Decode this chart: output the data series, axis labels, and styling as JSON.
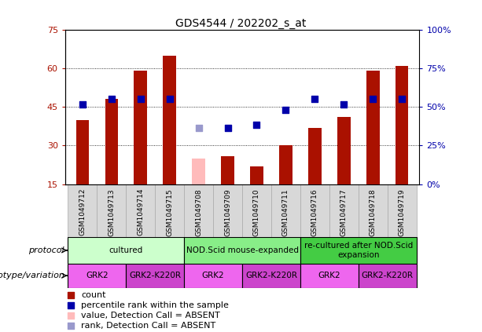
{
  "title": "GDS4544 / 202202_s_at",
  "samples": [
    "GSM1049712",
    "GSM1049713",
    "GSM1049714",
    "GSM1049715",
    "GSM1049708",
    "GSM1049709",
    "GSM1049710",
    "GSM1049711",
    "GSM1049716",
    "GSM1049717",
    "GSM1049718",
    "GSM1049719"
  ],
  "red_bar_values": [
    40,
    48,
    59,
    65,
    null,
    26,
    22,
    30,
    37,
    41,
    59,
    61
  ],
  "pink_bar_values": [
    null,
    null,
    null,
    null,
    25,
    null,
    null,
    null,
    null,
    null,
    null,
    null
  ],
  "blue_dot_values": [
    46,
    48,
    48,
    48,
    null,
    37,
    38,
    44,
    48,
    46,
    48,
    48
  ],
  "lavender_dot_values": [
    null,
    null,
    null,
    null,
    37,
    null,
    null,
    null,
    null,
    null,
    null,
    null
  ],
  "ylim": [
    15,
    75
  ],
  "yticks": [
    15,
    30,
    45,
    60,
    75
  ],
  "y2lim": [
    0,
    100
  ],
  "y2ticks": [
    0,
    25,
    50,
    75,
    100
  ],
  "y2ticklabels": [
    "0%",
    "25%",
    "50%",
    "75%",
    "100%"
  ],
  "protocols": [
    {
      "label": "cultured",
      "start": 0,
      "end": 3,
      "color": "#ccffcc"
    },
    {
      "label": "NOD.Scid mouse-expanded",
      "start": 4,
      "end": 7,
      "color": "#88ee88"
    },
    {
      "label": "re-cultured after NOD.Scid\nexpansion",
      "start": 8,
      "end": 11,
      "color": "#44cc44"
    }
  ],
  "genotypes": [
    {
      "label": "GRK2",
      "start": 0,
      "end": 1,
      "color": "#ee66ee"
    },
    {
      "label": "GRK2-K220R",
      "start": 2,
      "end": 3,
      "color": "#cc44cc"
    },
    {
      "label": "GRK2",
      "start": 4,
      "end": 5,
      "color": "#ee66ee"
    },
    {
      "label": "GRK2-K220R",
      "start": 6,
      "end": 7,
      "color": "#cc44cc"
    },
    {
      "label": "GRK2",
      "start": 8,
      "end": 9,
      "color": "#ee66ee"
    },
    {
      "label": "GRK2-K220R",
      "start": 10,
      "end": 11,
      "color": "#cc44cc"
    }
  ],
  "red_color": "#aa1100",
  "pink_color": "#ffbbbb",
  "blue_color": "#0000aa",
  "lavender_color": "#9999cc",
  "bar_width": 0.45,
  "dot_size": 35,
  "protocol_label": "protocol",
  "genotype_label": "genotype/variation",
  "sample_bg": "#d8d8d8",
  "chart_bg": "#ffffff"
}
